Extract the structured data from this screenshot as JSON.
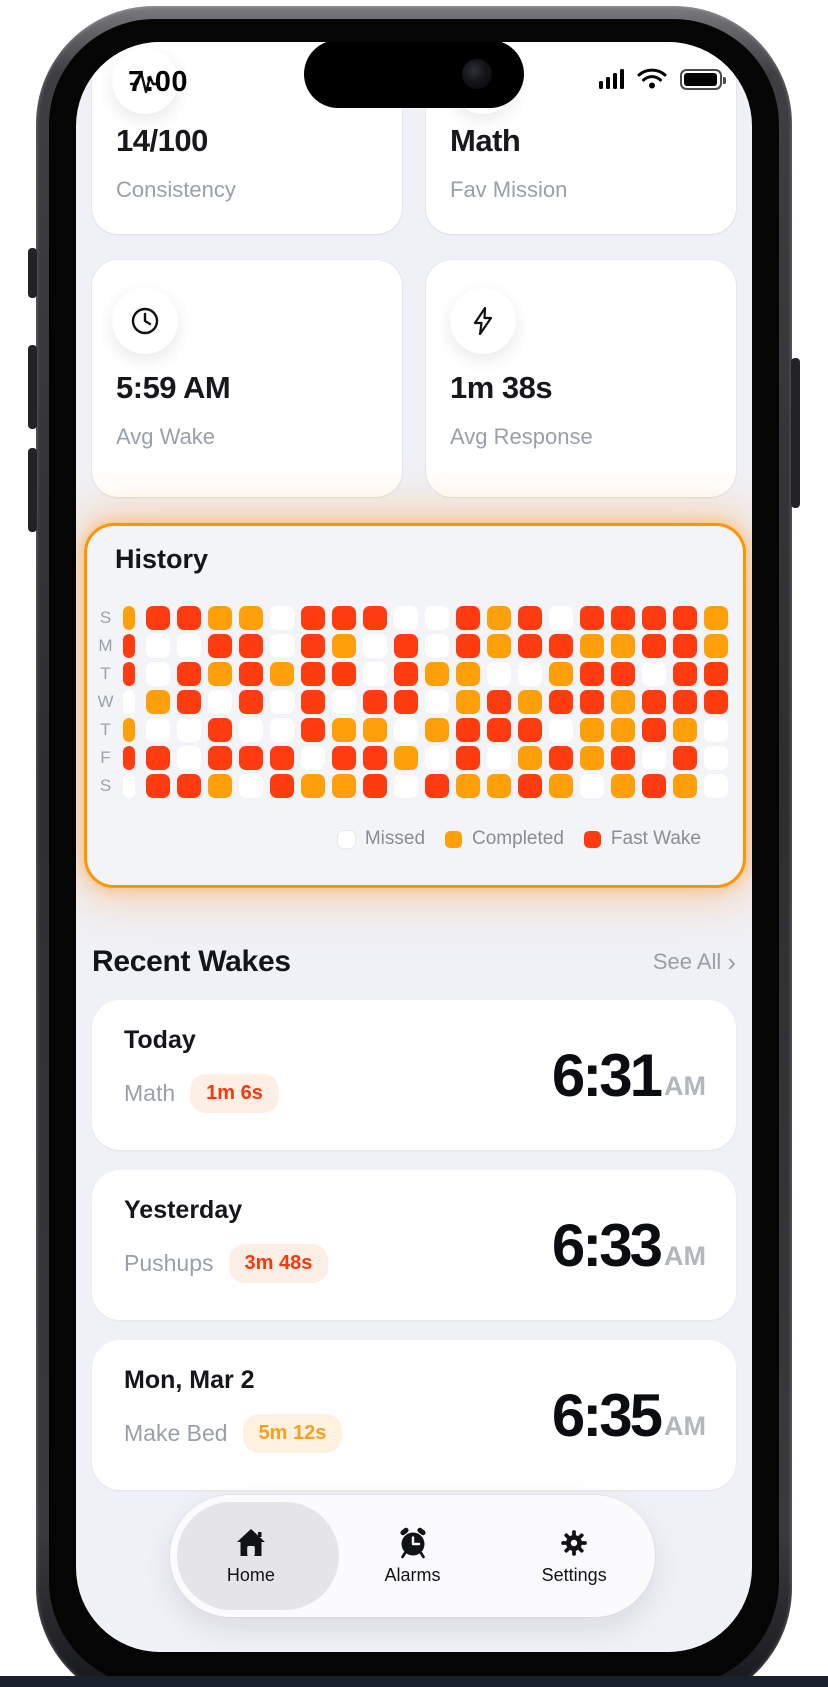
{
  "status_bar": {
    "time": "7:00"
  },
  "stats_cards": [
    {
      "icon": "pulse-icon",
      "value": "14/100",
      "label": "Consistency"
    },
    {
      "icon": "hidden-icon",
      "value": "Math",
      "label": "Fav Mission"
    },
    {
      "icon": "clock-icon",
      "value": "5:59 AM",
      "label": "Avg Wake"
    },
    {
      "icon": "bolt-icon",
      "value": "1m 38s",
      "label": "Avg Response"
    }
  ],
  "history": {
    "title": "History",
    "day_labels": [
      "S",
      "M",
      "T",
      "W",
      "T",
      "F",
      "S"
    ],
    "legend": [
      {
        "label": "Missed",
        "color": "#ffffff"
      },
      {
        "label": "Completed",
        "color": "#ff9f0a"
      },
      {
        "label": "Fast Wake",
        "color": "#ff3b10"
      }
    ],
    "grid": [
      [
        "O",
        "R",
        "R",
        "O",
        "O",
        "W",
        "R",
        "R",
        "R",
        "W",
        "W",
        "R",
        "O",
        "R",
        "W",
        "R",
        "R",
        "R",
        "R",
        "O"
      ],
      [
        "R",
        "W",
        "W",
        "R",
        "R",
        "W",
        "R",
        "O",
        "W",
        "R",
        "W",
        "R",
        "O",
        "R",
        "R",
        "O",
        "O",
        "R",
        "R",
        "O"
      ],
      [
        "R",
        "W",
        "R",
        "O",
        "R",
        "O",
        "R",
        "R",
        "W",
        "R",
        "O",
        "O",
        "W",
        "W",
        "O",
        "R",
        "R",
        "W",
        "R",
        "R"
      ],
      [
        "W",
        "O",
        "R",
        "W",
        "R",
        "W",
        "R",
        "W",
        "R",
        "R",
        "W",
        "O",
        "R",
        "O",
        "R",
        "R",
        "O",
        "R",
        "R",
        "R"
      ],
      [
        "O",
        "W",
        "W",
        "R",
        "W",
        "W",
        "R",
        "O",
        "O",
        "W",
        "O",
        "R",
        "R",
        "R",
        "W",
        "O",
        "O",
        "R",
        "O",
        "W"
      ],
      [
        "R",
        "R",
        "W",
        "R",
        "R",
        "R",
        "W",
        "R",
        "R",
        "O",
        "W",
        "R",
        "W",
        "O",
        "R",
        "O",
        "R",
        "W",
        "R",
        "W"
      ],
      [
        "W",
        "R",
        "R",
        "O",
        "W",
        "R",
        "O",
        "O",
        "R",
        "W",
        "R",
        "O",
        "O",
        "R",
        "O",
        "W",
        "O",
        "R",
        "O",
        "W"
      ]
    ]
  },
  "recent_wakes": {
    "title": "Recent Wakes",
    "see_all": "See All",
    "chevron": "›",
    "items": [
      {
        "date": "Today",
        "mission": "Math",
        "duration": "1m 6s",
        "badge_style": "red",
        "time": "6:31",
        "meridiem": "AM"
      },
      {
        "date": "Yesterday",
        "mission": "Pushups",
        "duration": "3m 48s",
        "badge_style": "red",
        "time": "6:33",
        "meridiem": "AM"
      },
      {
        "date": "Mon, Mar 2",
        "mission": "Make Bed",
        "duration": "5m 12s",
        "badge_style": "orange",
        "time": "6:35",
        "meridiem": "AM"
      }
    ]
  },
  "tab_bar": {
    "tabs": [
      {
        "label": "Home",
        "icon": "home-icon",
        "active": true
      },
      {
        "label": "Alarms",
        "icon": "alarm-icon",
        "active": false
      },
      {
        "label": "Settings",
        "icon": "gear-icon",
        "active": false
      }
    ]
  },
  "colors": {
    "missed": "#ffffff",
    "completed": "#ff9f0a",
    "fast_wake": "#ff3b10",
    "history_border": "#ff9500",
    "badge_red_text": "#f43a0c",
    "badge_orange_text": "#f5a01f",
    "screen_bg": "#f0f1f6"
  }
}
